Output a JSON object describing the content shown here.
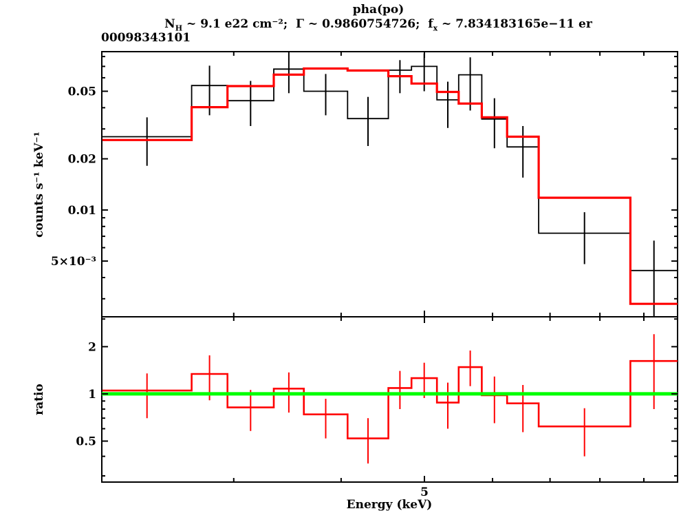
{
  "header": {
    "title": "pha(po)",
    "subtitle": {
      "nh_prefix": "N",
      "nh_sub": "H",
      "mid": " ~ 9.1 e22 cm⁻²;  Γ ~ 0.9860754726;  f",
      "fx_sub": "x",
      "tail": " ~ 7.834183165e−11 er"
    },
    "obs_id": "00098343101"
  },
  "axes": {
    "x_label": "Energy (keV)",
    "y_label_top": "counts s⁻¹ keV⁻¹",
    "y_label_bottom": "ratio",
    "x_scale": "log",
    "y_scale": "log",
    "x_range": [
      2.107,
      9.85
    ],
    "y_range_top": [
      0.00235,
      0.0855
    ],
    "y_range_bottom": [
      0.274,
      3.1
    ],
    "x_ticks_major": [
      {
        "value": 5,
        "label": "5"
      }
    ],
    "x_ticks_minor": [
      3,
      4,
      6,
      7,
      8,
      9
    ],
    "y_ticks_top_major": [
      {
        "value": 0.05,
        "label": "0.05"
      },
      {
        "value": 0.02,
        "label": "0.02"
      },
      {
        "value": 0.01,
        "label": "0.01"
      },
      {
        "value": 0.005,
        "label": "5×10⁻³"
      }
    ],
    "y_ticks_top_minor": [
      0.08,
      0.07,
      0.06,
      0.04,
      0.03,
      0.009,
      0.008,
      0.007,
      0.006,
      0.004,
      0.003
    ],
    "y_ticks_bottom_major": [
      {
        "value": 2,
        "label": "2"
      },
      {
        "value": 1,
        "label": "1"
      },
      {
        "value": 0.5,
        "label": "0.5"
      }
    ],
    "y_ticks_bottom_minor": [
      3,
      0.9,
      0.8,
      0.7,
      0.6,
      0.4,
      0.3
    ]
  },
  "colors": {
    "data": "#000000",
    "model": "#ff0000",
    "ratio": "#ff0000",
    "reference": "#00ff00",
    "frame": "#000000",
    "background": "#ffffff"
  },
  "chart_data": {
    "type": "step-histogram-with-errorbars",
    "title": "pha(po)",
    "xlabel": "Energy (keV)",
    "x_scale": "log",
    "y_scale": "log",
    "panels": [
      {
        "name": "spectrum",
        "ylabel": "counts s⁻¹ keV⁻¹",
        "series": [
          "data (black, with errors)",
          "folded model (red)"
        ]
      },
      {
        "name": "ratio",
        "ylabel": "ratio",
        "series": [
          "data/model (red, with errors)",
          "reference line (green)"
        ]
      }
    ],
    "bin_edges_keV": [
      2.11,
      2.68,
      2.95,
      3.34,
      3.62,
      4.07,
      4.54,
      4.83,
      5.17,
      5.48,
      5.83,
      6.24,
      6.79,
      8.68,
      9.85
    ],
    "data_counts": [
      0.027,
      0.054,
      0.044,
      0.0675,
      0.05,
      0.0345,
      0.0665,
      0.07,
      0.0445,
      0.0625,
      0.0343,
      0.0235,
      0.0073,
      0.0044
    ],
    "data_err_lo": [
      0.0182,
      0.0361,
      0.0312,
      0.0487,
      0.0361,
      0.0238,
      0.0487,
      0.05,
      0.0304,
      0.0385,
      0.0231,
      0.0155,
      0.0048,
      0.0023
    ],
    "data_err_hi": [
      0.0351,
      0.0707,
      0.0575,
      0.0849,
      0.0632,
      0.0463,
      0.0762,
      0.0836,
      0.0569,
      0.0791,
      0.0455,
      0.0312,
      0.0097,
      0.0066
    ],
    "model_counts": [
      0.0258,
      0.0403,
      0.0536,
      0.0626,
      0.068,
      0.0662,
      0.0613,
      0.0555,
      0.0495,
      0.0423,
      0.0351,
      0.027,
      0.0118,
      0.0028
    ],
    "ratio": [
      1.05,
      1.34,
      0.82,
      1.08,
      0.74,
      0.52,
      1.09,
      1.26,
      0.88,
      1.48,
      0.98,
      0.87,
      0.62,
      1.62
    ],
    "ratio_err_lo": [
      0.7,
      0.91,
      0.58,
      0.76,
      0.52,
      0.36,
      0.8,
      0.94,
      0.6,
      1.12,
      0.65,
      0.57,
      0.4,
      0.8
    ],
    "ratio_err_hi": [
      1.35,
      1.76,
      1.06,
      1.37,
      0.93,
      0.7,
      1.4,
      1.58,
      1.18,
      1.89,
      1.29,
      1.14,
      0.81,
      2.4
    ],
    "ratio_reference": 1.0
  }
}
